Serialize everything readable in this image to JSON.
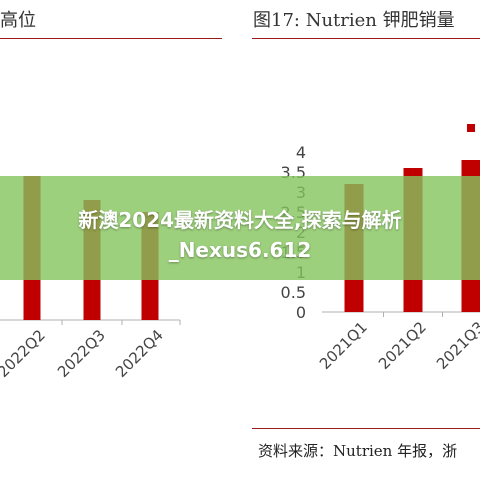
{
  "left_panel": {
    "title": "高位"
  },
  "right_panel": {
    "title": "图17:   Nutrien 钾肥销量",
    "source": "资料来源：Nutrien 年报，浙"
  },
  "banner": {
    "line1": "新澳2024最新资料大全,探索与解析",
    "line2": "_Nexus6.612"
  },
  "colors": {
    "bar": "#c00000",
    "axis": "#b0b0b0",
    "rule": "#9b1b1b",
    "banner": "#84c45c"
  },
  "chart_data": [
    {
      "type": "bar",
      "title": "",
      "categories": [
        "2022Q2",
        "2022Q3",
        "2022Q4"
      ],
      "values": [
        3.6,
        3.0,
        2.7
      ],
      "xlabel": "",
      "ylabel": "",
      "ylim": [
        0,
        4.8
      ]
    },
    {
      "type": "bar",
      "title": "",
      "categories": [
        "2021Q1",
        "2021Q2",
        "2021Q3"
      ],
      "values": [
        3.2,
        3.6,
        3.8
      ],
      "marker_value": 4.6,
      "yticks": [
        "0",
        "0.5",
        "1",
        "1.5",
        "2",
        "2.5",
        "3",
        "3.5",
        "4"
      ],
      "xlabel": "",
      "ylabel": "",
      "ylim": [
        0,
        4.8
      ]
    }
  ]
}
